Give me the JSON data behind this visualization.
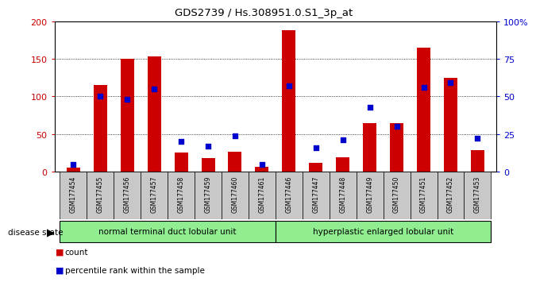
{
  "title": "GDS2739 / Hs.308951.0.S1_3p_at",
  "samples": [
    "GSM177454",
    "GSM177455",
    "GSM177456",
    "GSM177457",
    "GSM177458",
    "GSM177459",
    "GSM177460",
    "GSM177461",
    "GSM177446",
    "GSM177447",
    "GSM177448",
    "GSM177449",
    "GSM177450",
    "GSM177451",
    "GSM177452",
    "GSM177453"
  ],
  "counts": [
    5,
    115,
    150,
    153,
    25,
    18,
    27,
    6,
    188,
    12,
    19,
    65,
    65,
    165,
    125,
    29
  ],
  "percentiles": [
    5,
    50,
    48,
    55,
    20,
    17,
    24,
    5,
    57,
    16,
    21,
    43,
    30,
    56,
    59,
    22
  ],
  "group1_label": "normal terminal duct lobular unit",
  "group2_label": "hyperplastic enlarged lobular unit",
  "group1_count": 8,
  "group2_count": 8,
  "bar_color": "#cc0000",
  "dot_color": "#0000cc",
  "left_axis_color": "#cc0000",
  "right_axis_color": "#0000cc",
  "ylim_left": [
    0,
    200
  ],
  "ylim_right": [
    0,
    100
  ],
  "yticks_left": [
    0,
    50,
    100,
    150,
    200
  ],
  "ytick_labels_right": [
    "0",
    "25",
    "50",
    "75",
    "100%"
  ],
  "group_color": "#90ee90",
  "label_bg_color": "#c8c8c8",
  "bar_width": 0.5
}
